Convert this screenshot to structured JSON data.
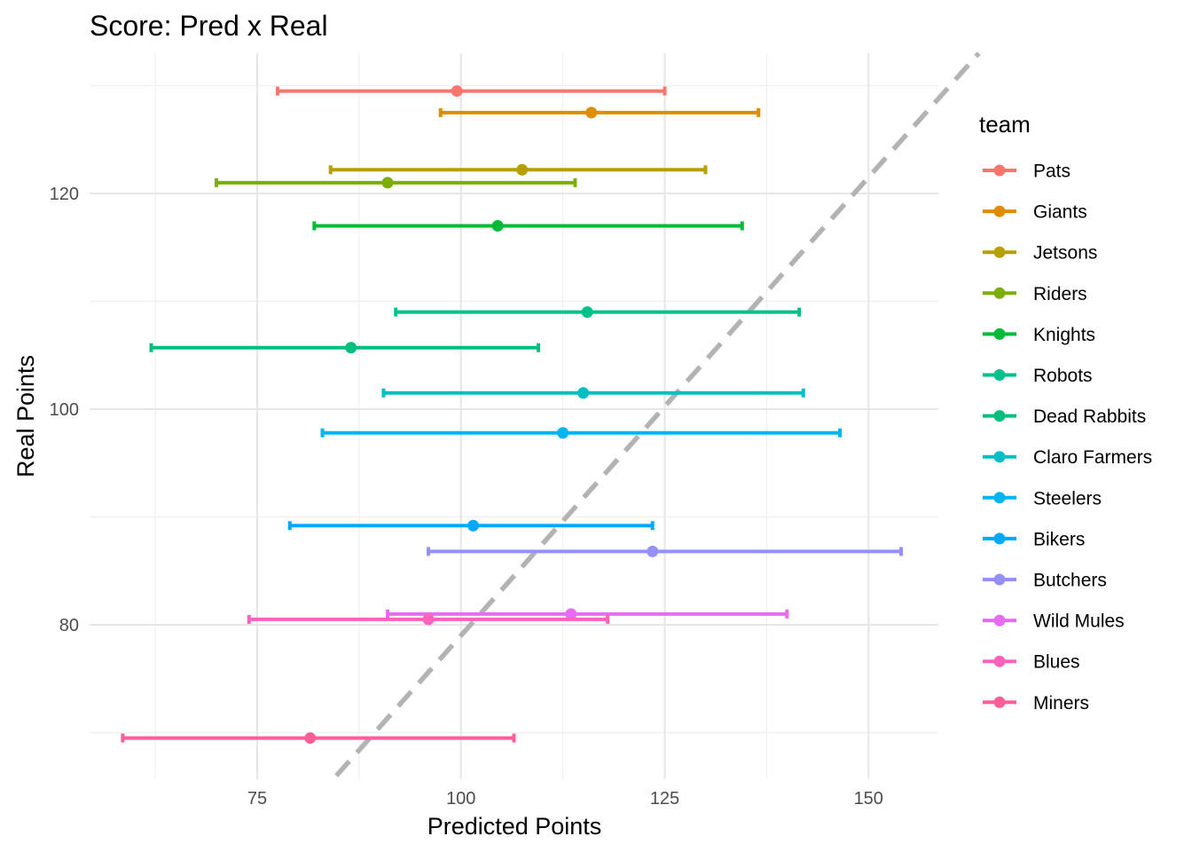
{
  "chart_data": {
    "type": "scatter",
    "title": "Score: Pred x Real",
    "xlabel": "Predicted Points",
    "ylabel": "Real Points",
    "xlim": [
      55,
      159
    ],
    "ylim": [
      66,
      133
    ],
    "x_ticks": [
      75,
      100,
      125,
      150
    ],
    "y_ticks": [
      80,
      100,
      120
    ],
    "grid": true,
    "legend": {
      "title": "team",
      "position": "right"
    },
    "reference_line": {
      "style": "dashed",
      "color": "#b3b3b3",
      "slope": 0.85,
      "intercept": -6
    },
    "series": [
      {
        "name": "Pats",
        "color": "#F8766D",
        "x": 99.5,
        "y": 129.5,
        "xmin": 77.5,
        "xmax": 125.0
      },
      {
        "name": "Giants",
        "color": "#DE8C00",
        "x": 116.0,
        "y": 127.5,
        "xmin": 97.5,
        "xmax": 136.5
      },
      {
        "name": "Jetsons",
        "color": "#B79F00",
        "x": 107.5,
        "y": 122.2,
        "xmin": 84.0,
        "xmax": 130.0
      },
      {
        "name": "Riders",
        "color": "#7CAE00",
        "x": 91.0,
        "y": 121.0,
        "xmin": 70.0,
        "xmax": 114.0
      },
      {
        "name": "Knights",
        "color": "#00BA38",
        "x": 104.5,
        "y": 117.0,
        "xmin": 82.0,
        "xmax": 134.5
      },
      {
        "name": "Robots",
        "color": "#00C08B",
        "x": 115.5,
        "y": 109.0,
        "xmin": 92.0,
        "xmax": 141.5
      },
      {
        "name": "Dead Rabbits",
        "color": "#00BF7D",
        "x": 86.5,
        "y": 105.7,
        "xmin": 62.0,
        "xmax": 109.5
      },
      {
        "name": "Claro Farmers",
        "color": "#00BFC4",
        "x": 115.0,
        "y": 101.5,
        "xmin": 90.5,
        "xmax": 142.0
      },
      {
        "name": "Steelers",
        "color": "#00B4EF",
        "x": 112.5,
        "y": 97.8,
        "xmin": 83.0,
        "xmax": 146.5
      },
      {
        "name": "Bikers",
        "color": "#00A9FF",
        "x": 101.5,
        "y": 89.2,
        "xmin": 79.0,
        "xmax": 123.5
      },
      {
        "name": "Butchers",
        "color": "#9590FF",
        "x": 123.5,
        "y": 86.8,
        "xmin": 96.0,
        "xmax": 154.0
      },
      {
        "name": "Wild Mules",
        "color": "#E76BF3",
        "x": 113.5,
        "y": 81.0,
        "xmin": 91.0,
        "xmax": 140.0
      },
      {
        "name": "Blues",
        "color": "#FF62BC",
        "x": 96.0,
        "y": 80.5,
        "xmin": 74.0,
        "xmax": 118.0
      },
      {
        "name": "Miners",
        "color": "#FF5E9B",
        "x": 81.5,
        "y": 69.5,
        "xmin": 58.5,
        "xmax": 106.5
      }
    ]
  }
}
